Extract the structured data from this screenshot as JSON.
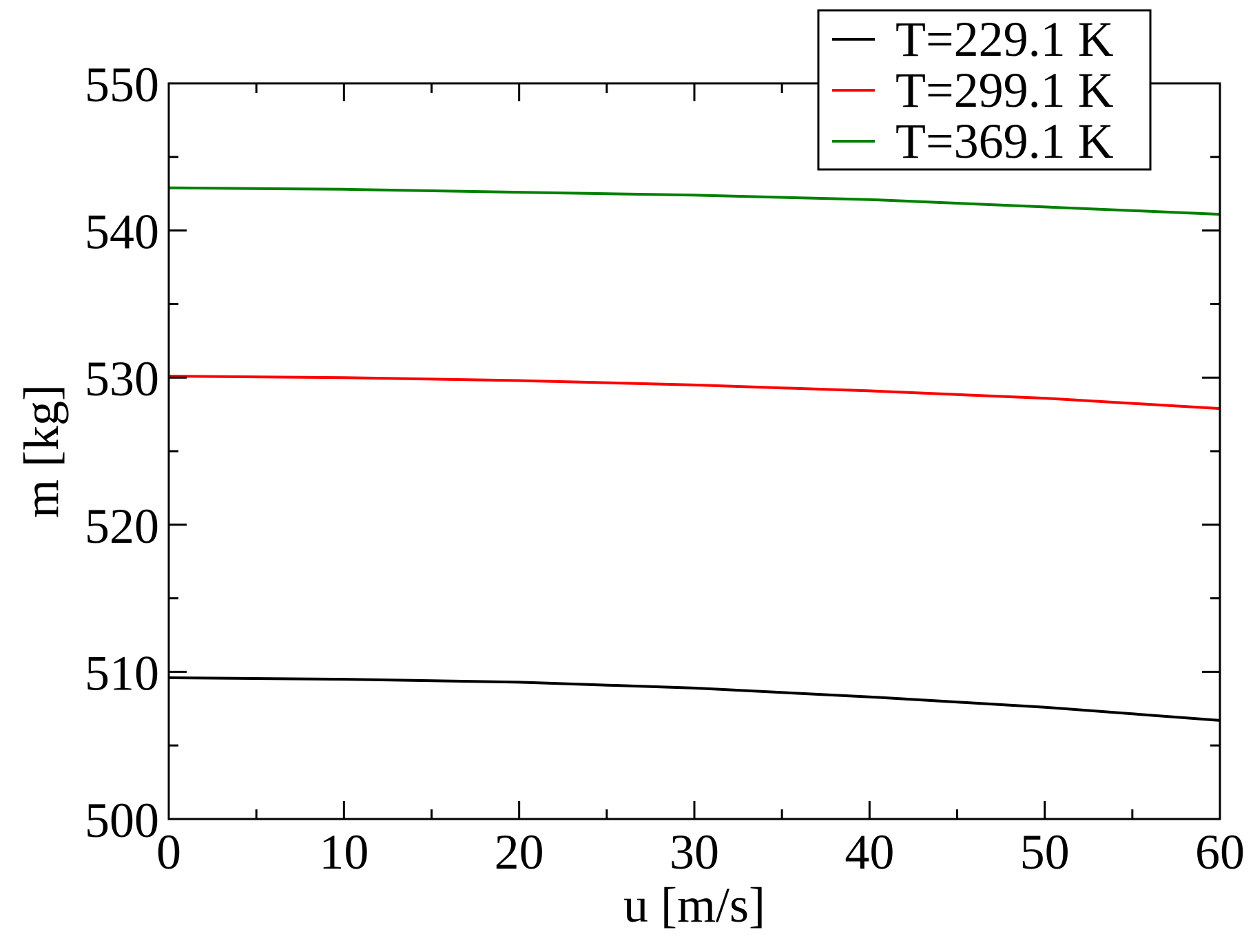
{
  "chart_data": {
    "type": "line",
    "title": "",
    "xlabel": "u [m/s]",
    "ylabel": "m [kg]",
    "xlim": [
      0,
      60
    ],
    "ylim": [
      500,
      550
    ],
    "x_ticks": [
      "0",
      "10",
      "20",
      "30",
      "40",
      "50",
      "60"
    ],
    "y_ticks": [
      "500",
      "510",
      "520",
      "530",
      "540",
      "550"
    ],
    "x_minor_step": 5,
    "y_minor_step": 5,
    "grid": false,
    "legend_position": "top-right",
    "series": [
      {
        "name": "T=229.1 K",
        "color": "#000000",
        "x": [
          0,
          10,
          20,
          30,
          40,
          50,
          60
        ],
        "y": [
          509.6,
          509.5,
          509.3,
          508.9,
          508.3,
          507.6,
          506.7
        ]
      },
      {
        "name": "T=299.1 K",
        "color": "#ff0000",
        "x": [
          0,
          10,
          20,
          30,
          40,
          50,
          60
        ],
        "y": [
          530.1,
          530.0,
          529.8,
          529.5,
          529.1,
          528.6,
          527.9
        ]
      },
      {
        "name": "T=369.1 K",
        "color": "#008000",
        "x": [
          0,
          10,
          20,
          30,
          40,
          50,
          60
        ],
        "y": [
          542.9,
          542.8,
          542.6,
          542.4,
          542.1,
          541.6,
          541.1
        ]
      }
    ]
  }
}
